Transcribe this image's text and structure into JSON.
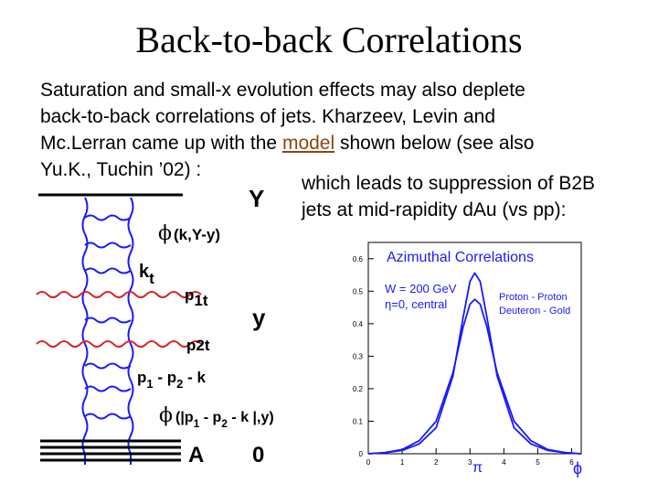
{
  "slide": {
    "title": "Back-to-back Correlations",
    "para_lines": [
      "Saturation and small-x evolution effects may also deplete",
      "back-to-back correlations of jets. Kharzeev, Levin and"
    ],
    "line3_before": "Mc.Lerran came up with the ",
    "line3_link": "model",
    "line3_after": " shown below (see also",
    "line4": "Yu.K., Tuchin ’02) :",
    "para2_lines": [
      "which leads to suppression of B2B",
      "jets at mid-rapidity dAu (vs pp):"
    ]
  },
  "diagram": {
    "label_Y": "Y",
    "label_phi1": "(k,Y-y)",
    "label_kt_k": "k",
    "label_kt_sub": "t",
    "label_p1": "p",
    "label_p1_sub": "1t",
    "label_y": "y",
    "label_p2": "p",
    "label_p2_sub": "2t",
    "label_diff_p1": "p",
    "label_diff_sub1": "1",
    "label_diff_minus1": " - ",
    "label_diff_p2": "p",
    "label_diff_sub2": "2",
    "label_diff_minus2": " - ",
    "label_diff_k": "k",
    "label_phi2_open": "(|",
    "label_phi2_p1": "p",
    "label_phi2_sub1": "1",
    "label_phi2_minus1": " - ",
    "label_phi2_p2": "p",
    "label_phi2_sub2": "2",
    "label_phi2_rest": " - k |,y)",
    "label_A": "A",
    "label_0": "0",
    "phi_symbol": "ϕ",
    "colors": {
      "ladder": "#1a1aff",
      "gluon": "#dd2222"
    }
  },
  "chart_data": {
    "type": "line",
    "title": "Azimuthal Correlations",
    "annotation_lines": [
      "W = 200 GeV",
      "η=0, central"
    ],
    "legend": [
      "Proton - Proton",
      "Deuteron - Gold"
    ],
    "xlim": [
      0,
      6.283
    ],
    "ylim": [
      0,
      0.65
    ],
    "xticks": [
      "0",
      "1",
      "2",
      "3",
      "4",
      "5",
      "6"
    ],
    "yticks": [
      "0",
      "0.1",
      "0.2",
      "0.3",
      "0.4",
      "0.5",
      "0.6"
    ],
    "x_markers": [
      "π",
      "ϕ"
    ],
    "series": [
      {
        "name": "Proton - Proton",
        "color": "#1a1aff",
        "x": [
          0,
          0.5,
          1.0,
          1.5,
          2.0,
          2.5,
          2.8,
          3.0,
          3.14,
          3.3,
          3.5,
          3.8,
          4.3,
          4.8,
          5.3,
          5.8,
          6.28
        ],
        "y": [
          0.0,
          0.003,
          0.01,
          0.03,
          0.08,
          0.24,
          0.42,
          0.53,
          0.556,
          0.53,
          0.42,
          0.24,
          0.08,
          0.03,
          0.01,
          0.003,
          0.0
        ]
      },
      {
        "name": "Deuteron - Gold",
        "color": "#1a1aff",
        "x": [
          0,
          0.5,
          1.0,
          1.5,
          2.0,
          2.5,
          2.8,
          3.0,
          3.14,
          3.3,
          3.5,
          3.8,
          4.3,
          4.8,
          5.3,
          5.8,
          6.28
        ],
        "y": [
          0.0,
          0.004,
          0.013,
          0.04,
          0.1,
          0.25,
          0.39,
          0.46,
          0.475,
          0.46,
          0.39,
          0.25,
          0.1,
          0.04,
          0.013,
          0.004,
          0.0
        ]
      }
    ]
  }
}
